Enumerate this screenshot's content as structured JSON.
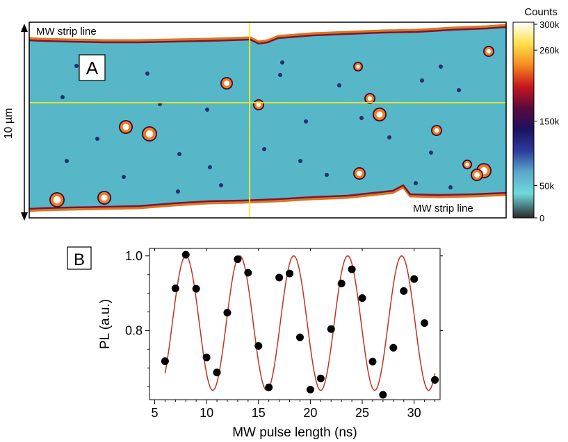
{
  "panel_a": {
    "label": "A",
    "top_strip_label": "MW strip line",
    "bottom_strip_label": "MW strip line",
    "scale_label": "10 µm",
    "colorbar": {
      "title": "Counts",
      "ticks": [
        "300k",
        "260k",
        "150k",
        "50k",
        "0"
      ],
      "tick_values": [
        300,
        260,
        150,
        50,
        0
      ],
      "colors": [
        "#ffffff",
        "#ffe14a",
        "#f58a1f",
        "#c8161e",
        "#5b0a3c",
        "#1b1160",
        "#2b3c9a",
        "#5aa8c8",
        "#6fd9dc",
        "#2a2a2a"
      ]
    },
    "crosshair_color": "#f2f018",
    "background_color": "#4fb8c9"
  },
  "panel_b": {
    "label": "B"
  },
  "chart_data": {
    "type": "scatter",
    "title": "",
    "xlabel": "MW pulse length (ns)",
    "ylabel": "PL (a.u.)",
    "xlim": [
      4.5,
      32.5
    ],
    "ylim": [
      0.615,
      1.02
    ],
    "xticks": [
      5,
      10,
      15,
      20,
      25,
      30
    ],
    "yticks": [
      0.8,
      1.0
    ],
    "ytick_labels": [
      "0.8",
      "1.0"
    ],
    "series": [
      {
        "kind": "points",
        "color": "#000000",
        "x": [
          6,
          7,
          8,
          9,
          10,
          11,
          12,
          13,
          14,
          15,
          16,
          17,
          18,
          19,
          20,
          21,
          22,
          23,
          24,
          25,
          26,
          27,
          28,
          29,
          30,
          31,
          32
        ],
        "y": [
          0.718,
          0.913,
          1.003,
          0.912,
          0.728,
          0.688,
          0.848,
          0.991,
          0.955,
          0.759,
          0.648,
          0.942,
          0.953,
          0.782,
          0.642,
          0.672,
          0.804,
          0.926,
          0.964,
          0.887,
          0.717,
          0.628,
          0.754,
          0.906,
          0.938,
          0.82,
          0.668
        ]
      },
      {
        "kind": "fit",
        "color": "#c0321e",
        "function": "0.82 + 0.18*cos(2*pi*(x-8)/5.2)",
        "x_range": [
          6,
          32
        ]
      }
    ]
  }
}
